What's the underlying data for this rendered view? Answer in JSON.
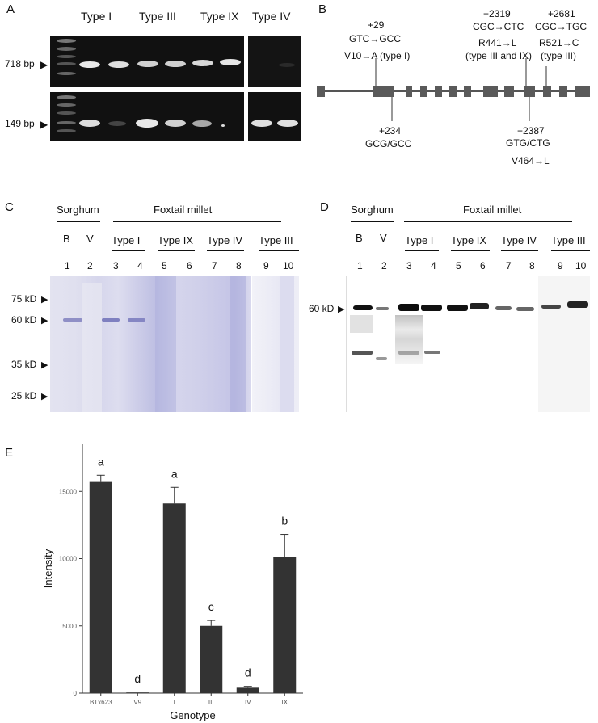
{
  "panelA": {
    "label": "A",
    "groups": [
      "Type I",
      "Type III",
      "Type IX",
      "Type IV"
    ],
    "size_top": "718 bp",
    "size_bottom": "149 bp"
  },
  "panelB": {
    "label": "B",
    "mut1": {
      "pos": "+29",
      "codon": "GTC→GCC",
      "aa": "V10→A (type I)"
    },
    "mut2": {
      "pos": "+234",
      "codon": "GCG/GCC"
    },
    "mut3": {
      "pos": "+2319",
      "codon": "CGC→CTC",
      "aa": "R441→L",
      "note": "(type III and IX)"
    },
    "mut4": {
      "pos": "+2681",
      "codon": "CGC→TGC",
      "aa": "R521→C",
      "note": "(type III)"
    },
    "mut5": {
      "pos": "+2387",
      "codon": "GTG/CTG",
      "aa": "V464→L"
    }
  },
  "panelC": {
    "label": "C",
    "sorghum": "Sorghum",
    "foxtail": "Foxtail millet",
    "sub": [
      "B",
      "V"
    ],
    "types": [
      "Type I",
      "Type IX",
      "Type IV",
      "Type III"
    ],
    "lanes": [
      "1",
      "2",
      "3",
      "4",
      "5",
      "6",
      "7",
      "8",
      "9",
      "10"
    ],
    "markers": [
      "75 kD",
      "60 kD",
      "35 kD",
      "25 kD"
    ]
  },
  "panelD": {
    "label": "D",
    "sorghum": "Sorghum",
    "foxtail": "Foxtail millet",
    "sub": [
      "B",
      "V"
    ],
    "types": [
      "Type I",
      "Type IX",
      "Type IV",
      "Type III"
    ],
    "lanes": [
      "1",
      "2",
      "3",
      "4",
      "5",
      "6",
      "7",
      "8",
      "9",
      "10"
    ],
    "marker": "60 kD"
  },
  "panelE": {
    "label": "E",
    "chart_data": {
      "type": "bar",
      "categories": [
        "BTx623",
        "V9",
        "I",
        "III",
        "IV",
        "IX"
      ],
      "values": [
        15700,
        50,
        14100,
        5000,
        400,
        10100
      ],
      "errors": [
        500,
        0,
        1200,
        400,
        100,
        1700
      ],
      "letters": [
        "a",
        "d",
        "a",
        "c",
        "d",
        "b"
      ],
      "xlabel": "Genotype",
      "ylabel": "Intensity",
      "yticks": [
        0,
        5000,
        10000,
        15000
      ],
      "ylim": [
        0,
        18500
      ],
      "bar_color": "#333333"
    }
  }
}
